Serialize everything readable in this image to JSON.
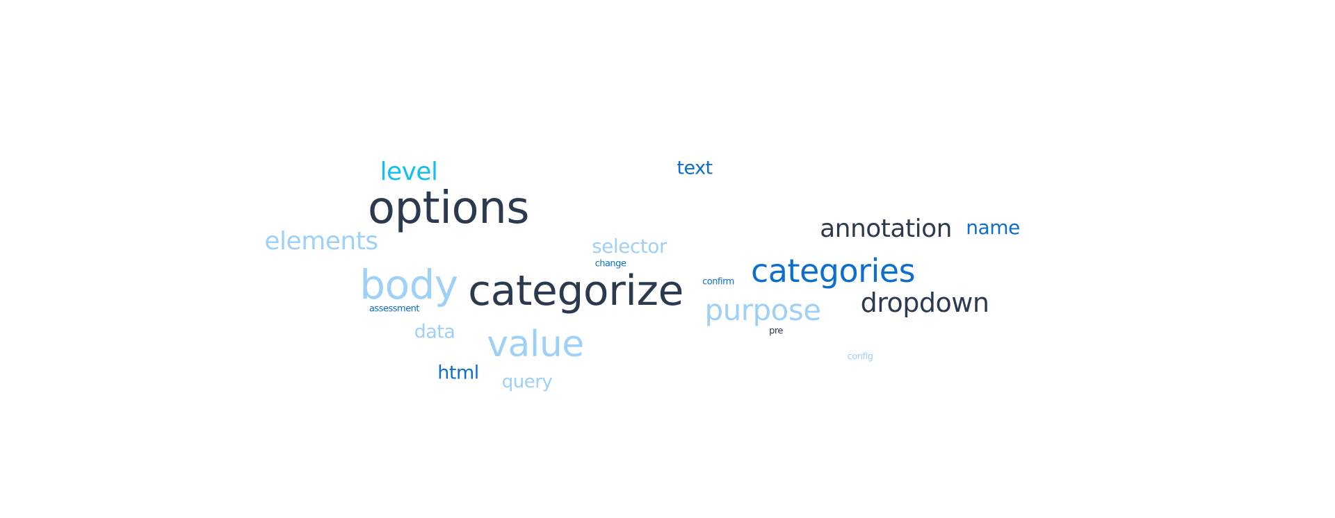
{
  "word_cloud": {
    "colors": {
      "navy": "#2b3a4f",
      "blue": "#0b6fcb",
      "light_blue": "#9fd0f7",
      "cyan": "#10c1ef"
    },
    "words": {
      "options": "options",
      "categorize": "categorize",
      "body": "body",
      "value": "value",
      "categories": "categories",
      "purpose": "purpose",
      "dropdown": "dropdown",
      "annotation": "annotation",
      "elements": "elements",
      "level": "level",
      "selector": "selector",
      "name": "name",
      "text": "text",
      "data": "data",
      "html": "html",
      "query": "query",
      "change": "change",
      "confirm": "confirm",
      "assessment": "assessment",
      "pre": "pre",
      "config": "config"
    }
  }
}
